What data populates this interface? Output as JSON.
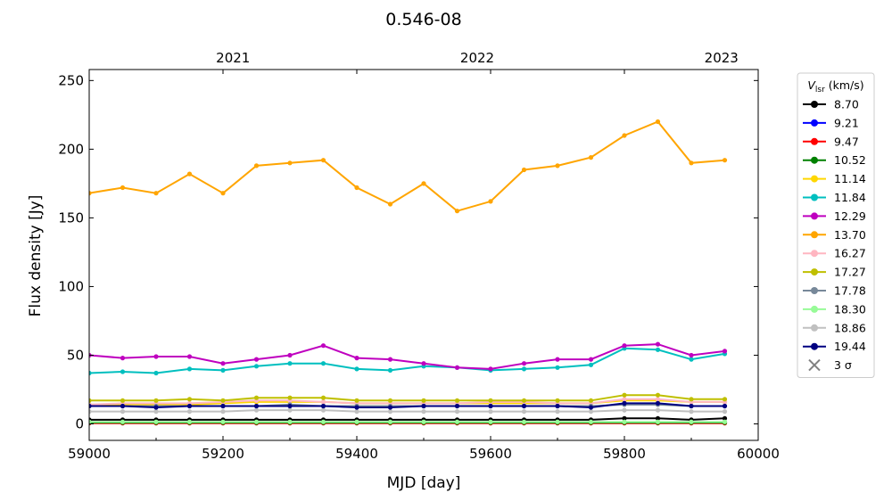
{
  "chart_data": {
    "type": "line",
    "title": "0.546-08",
    "xlabel": "MJD [day]",
    "ylabel": "Flux density [Jy]",
    "xlim": [
      59000,
      60000
    ],
    "ylim": [
      -12,
      258
    ],
    "xticks": [
      59000,
      59200,
      59400,
      59600,
      59800,
      60000
    ],
    "yticks": [
      0,
      50,
      100,
      150,
      200,
      250
    ],
    "top_axis": {
      "ticks": [
        {
          "label": "2021",
          "x": 59215
        },
        {
          "label": "2022",
          "x": 59580
        },
        {
          "label": "2023",
          "x": 59945
        }
      ]
    },
    "legend": {
      "title": "V_lsr (km/s)",
      "title_main": "V",
      "title_sub": "lsr",
      "title_rest": " (km/s)",
      "placement": "outside right",
      "extra_entry": {
        "label": "3 σ",
        "marker": "x",
        "color": "#808080"
      }
    },
    "x": [
      59000,
      59050,
      59100,
      59150,
      59200,
      59250,
      59300,
      59350,
      59400,
      59450,
      59500,
      59550,
      59600,
      59650,
      59700,
      59750,
      59800,
      59850,
      59900,
      59950
    ],
    "series": [
      {
        "name": "8.70",
        "color": "#000000",
        "values": [
          3,
          3,
          3,
          3,
          3,
          3,
          3,
          3,
          3,
          3,
          3,
          3,
          3,
          3,
          3,
          3,
          4,
          4,
          3,
          4
        ]
      },
      {
        "name": "9.21",
        "color": "#0000ff",
        "values": [
          1,
          1,
          1,
          1,
          1,
          1,
          1,
          1,
          1,
          1,
          1,
          1,
          1,
          1,
          1,
          1,
          1,
          1,
          1,
          1
        ]
      },
      {
        "name": "9.47",
        "color": "#ff0000",
        "values": [
          0.5,
          0.5,
          0.5,
          0.5,
          0.5,
          0.5,
          0.5,
          0.5,
          0.5,
          0.5,
          0.5,
          0.5,
          0.5,
          0.5,
          0.5,
          0.5,
          0.5,
          0.5,
          0.5,
          0.5
        ]
      },
      {
        "name": "10.52",
        "color": "#008000",
        "values": [
          1,
          1,
          1,
          1,
          1,
          1,
          1,
          1,
          1,
          1,
          1,
          1,
          1,
          1,
          1,
          1,
          1,
          1,
          1,
          1
        ]
      },
      {
        "name": "11.14",
        "color": "#ffd700",
        "values": [
          14,
          14,
          14,
          14,
          15,
          16,
          16,
          16,
          15,
          15,
          15,
          15,
          15,
          15,
          15,
          15,
          17,
          17,
          16,
          16
        ]
      },
      {
        "name": "11.84",
        "color": "#00bfbf",
        "values": [
          37,
          38,
          37,
          40,
          39,
          42,
          44,
          44,
          40,
          39,
          42,
          41,
          39,
          40,
          41,
          43,
          55,
          54,
          47,
          51
        ]
      },
      {
        "name": "12.29",
        "color": "#bf00bf",
        "values": [
          50,
          48,
          49,
          49,
          44,
          47,
          50,
          57,
          48,
          47,
          44,
          41,
          40,
          44,
          47,
          47,
          57,
          58,
          50,
          53
        ]
      },
      {
        "name": "13.70",
        "color": "#ffa500",
        "values": [
          168,
          172,
          168,
          182,
          168,
          188,
          190,
          192,
          172,
          160,
          175,
          155,
          162,
          185,
          188,
          194,
          210,
          220,
          190,
          192
        ]
      },
      {
        "name": "16.27",
        "color": "#ffb6c1",
        "values": [
          14,
          15,
          15,
          15,
          16,
          17,
          17,
          16,
          15,
          15,
          15,
          15,
          16,
          16,
          15,
          15,
          18,
          18,
          16,
          16
        ]
      },
      {
        "name": "17.27",
        "color": "#bfbf00",
        "values": [
          17,
          17,
          17,
          18,
          17,
          19,
          19,
          19,
          17,
          17,
          17,
          17,
          17,
          17,
          17,
          17,
          21,
          21,
          18,
          18
        ]
      },
      {
        "name": "17.78",
        "color": "#778899",
        "values": [
          13,
          13,
          13,
          13,
          13,
          13,
          14,
          13,
          13,
          13,
          13,
          13,
          13,
          13,
          13,
          13,
          14,
          14,
          13,
          13
        ]
      },
      {
        "name": "18.30",
        "color": "#98fb98",
        "values": [
          1.5,
          1.5,
          1.5,
          1.5,
          1.5,
          1.5,
          1.5,
          1.5,
          1.5,
          1.5,
          1.5,
          1.5,
          1.5,
          1.5,
          1.5,
          1.5,
          1.5,
          1.5,
          1.5,
          1.5
        ]
      },
      {
        "name": "18.86",
        "color": "#c0c0c0",
        "values": [
          9,
          9,
          9,
          9,
          9,
          10,
          10,
          10,
          9,
          9,
          9,
          9,
          9,
          9,
          9,
          9,
          10,
          10,
          9,
          9
        ]
      },
      {
        "name": "19.44",
        "color": "#000080",
        "values": [
          13,
          13,
          12,
          13,
          13,
          13,
          13,
          13,
          12,
          12,
          13,
          13,
          13,
          13,
          13,
          12,
          15,
          15,
          13,
          13
        ]
      }
    ]
  }
}
